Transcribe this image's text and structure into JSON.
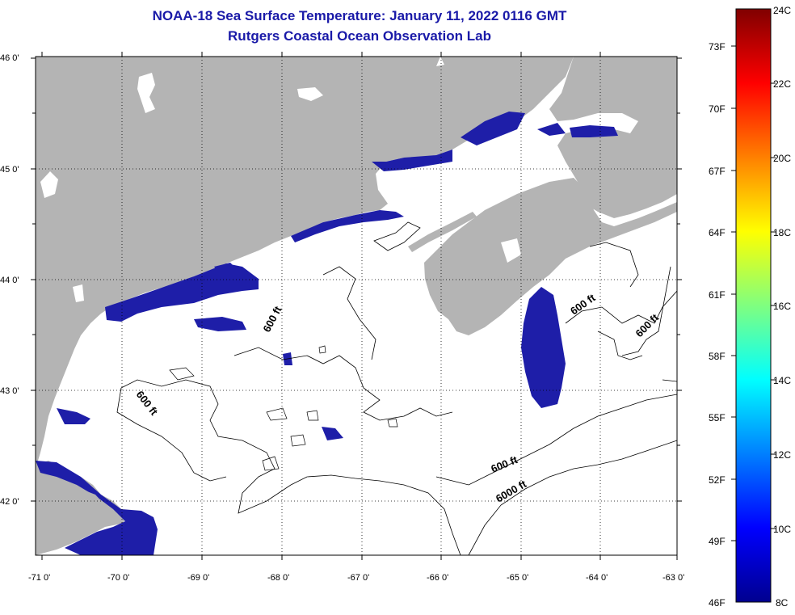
{
  "title": {
    "line1": "NOAA-18 Sea Surface Temperature:  January 11, 2022 0116 GMT",
    "line2": "Rutgers Coastal Ocean Observation Lab"
  },
  "map": {
    "lat_labels": [
      "46 0'",
      "45 0'",
      "44 0'",
      "43 0'",
      "42 0'"
    ],
    "lon_labels": [
      "-71 0'",
      "-70 0'",
      "-69 0'",
      "-68 0'",
      "-67 0'",
      "-66 0'",
      "-65 0'",
      "-64 0'",
      "-63 0'"
    ],
    "contour_labels": [
      "600 ft",
      "600 ft",
      "600 ft",
      "600 ft",
      "600 ft",
      "6000 ft"
    ],
    "colors": {
      "land": "#b4b4b4",
      "cold_water": "#1e1ea8",
      "cloud": "#ffffff"
    }
  },
  "colorbar": {
    "f_labels": [
      "73F",
      "70F",
      "67F",
      "64F",
      "61F",
      "58F",
      "55F",
      "52F",
      "49F",
      "46F"
    ],
    "c_labels": [
      "24C",
      "22C",
      "20C",
      "18C",
      "16C",
      "14C",
      "12C",
      "10C",
      "8C"
    ]
  }
}
